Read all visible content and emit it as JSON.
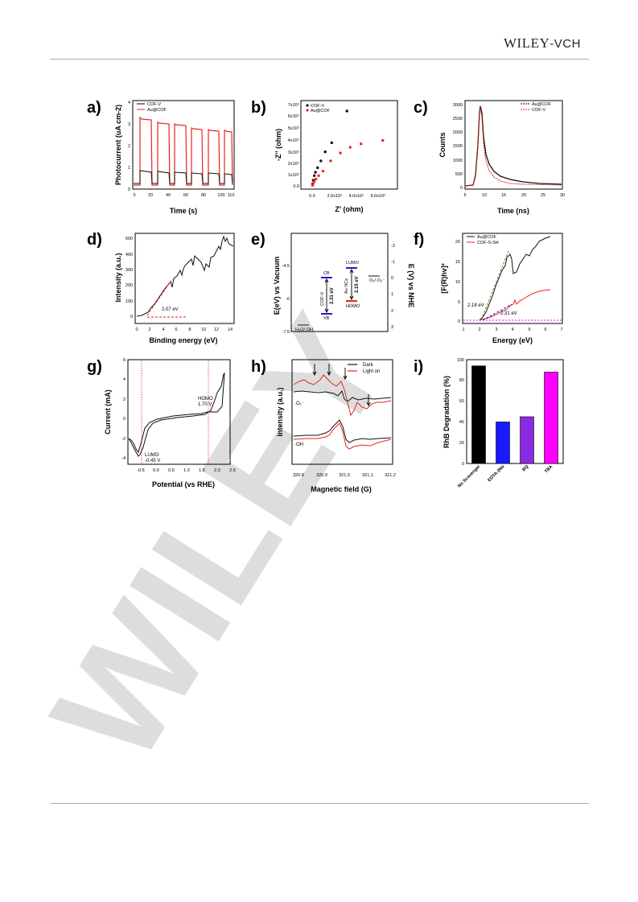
{
  "header": {
    "publisher": "WILEY",
    "publisher_suffix": "-VCH"
  },
  "watermark": "WILEY",
  "colors": {
    "red": "#e8231d",
    "black": "#111111",
    "blue": "#1a1ae6",
    "purple": "#8a2be2",
    "magenta": "#ff00ff"
  },
  "panels": {
    "a": {
      "label": "a)",
      "xlabel": "Time (s)",
      "ylabel": "Photocurrent (uA cm-2)",
      "xticks": [
        "0",
        "20",
        "40",
        "60",
        "80",
        "100",
        "110"
      ],
      "yticks": [
        "0",
        "1",
        "2",
        "3",
        "4"
      ],
      "legend": [
        "COF-V",
        "Au@COF"
      ]
    },
    "b": {
      "label": "b)",
      "xlabel": "Z' (ohm)",
      "ylabel": "-Z'' (ohm)",
      "xticks": [
        "0.0",
        "2.0x10⁵",
        "4.0x10⁵",
        "6.0x10⁵"
      ],
      "yticks": [
        "0.0",
        "1x10⁵",
        "2x10⁵",
        "3x10⁵",
        "4x10⁵",
        "5x10⁵",
        "6x10⁵",
        "7x10⁵"
      ],
      "legend": [
        "COF-V",
        "Au@COF"
      ]
    },
    "c": {
      "label": "c)",
      "xlabel": "Time (ns)",
      "ylabel": "Counts",
      "xticks": [
        "5",
        "10",
        "15",
        "20",
        "25",
        "30"
      ],
      "yticks": [
        "0",
        "500",
        "1000",
        "1500",
        "2000",
        "2500",
        "3000"
      ],
      "legend": [
        "Au@COF",
        "COF-V"
      ]
    },
    "d": {
      "label": "d)",
      "xlabel": "Binding energy (eV)",
      "ylabel": "Intensity (a.u.)",
      "xticks": [
        "0",
        "2",
        "4",
        "6",
        "8",
        "10",
        "12",
        "14"
      ],
      "yticks": [
        "0",
        "100",
        "200",
        "300",
        "400",
        "500"
      ],
      "annotation": "2.07 eV"
    },
    "e": {
      "label": "e)",
      "ylabel_left": "E(eV) vs Vacuum",
      "ylabel_right": "E (V) vs NHE",
      "yticks_left": [
        "-7.5",
        "-6",
        "-4.5"
      ],
      "yticks_right": [
        "-2",
        "-1",
        "0",
        "1",
        "2",
        "3"
      ],
      "cb": "CB",
      "vb": "VB",
      "lumo": "LUMO",
      "homo": "HOMO",
      "cof_label": "COF-V",
      "cof_gap": "2.31 eV",
      "au_label": "Au NCs",
      "au_gap": "2.15 eV",
      "o2_label": "O₂/·O₂⁻",
      "h2o_label": "H₂O/·OH"
    },
    "f": {
      "label": "f)",
      "xlabel": "Energy (eV)",
      "ylabel": "[F(R)hv]²",
      "xticks": [
        "1",
        "2",
        "3",
        "4",
        "5",
        "6",
        "7"
      ],
      "yticks": [
        "0",
        "5",
        "10",
        "15",
        "20"
      ],
      "legend": [
        "Au@COF",
        "COF-S-SH"
      ],
      "ann1": "2.18 eV",
      "ann2": "2.31 eV"
    },
    "g": {
      "label": "g)",
      "xlabel": "Potential (vs RHE)",
      "ylabel": "Current (mA)",
      "xticks": [
        "-0.5",
        "0.0",
        "0.5",
        "1.0",
        "1.5",
        "2.0",
        "2.5"
      ],
      "yticks": [
        "-4",
        "-2",
        "0",
        "2",
        "4",
        "6"
      ],
      "homo": "HOMO",
      "homo_v": "1.70 V",
      "lumo": "LUMO",
      "lumo_v": "-0.45 V"
    },
    "h": {
      "label": "h)",
      "xlabel": "Magnetic field (G)",
      "ylabel": "Intensity (a.u.)",
      "xticks": [
        "320.8",
        "320.9",
        "321.0",
        "321.1",
        "321.2"
      ],
      "legend": [
        "Dark",
        "Light on"
      ],
      "o2": "·O₂⁻",
      "oh": "·OH"
    },
    "i": {
      "label": "i)",
      "ylabel": "RhB Degradation (%)",
      "yticks": [
        "0",
        "20",
        "40",
        "60",
        "80",
        "100"
      ]
    }
  },
  "chart_data": [
    {
      "type": "bar",
      "title": "",
      "categories": [
        "No Scavenger",
        "EDTA-2Na",
        "BQ",
        "TBA"
      ],
      "values": [
        94,
        40,
        45,
        88
      ],
      "colors": [
        "#000000",
        "#1a1aff",
        "#8a2be2",
        "#ff00ff"
      ],
      "xlabel": "",
      "ylabel": "RhB Degradation (%)",
      "ylim": [
        0,
        100
      ]
    },
    {
      "type": "scatter",
      "title": "",
      "xlabel": "Z' (ohm)",
      "ylabel": "-Z'' (ohm)",
      "series": [
        {
          "name": "COF-V",
          "x": [
            5000.0,
            10000.0,
            20000.0,
            30000.0,
            50000.0,
            80000.0,
            120000.0,
            180000.0,
            320000.0
          ],
          "y": [
            20000.0,
            50000.0,
            90000.0,
            120000.0,
            160000.0,
            220000.0,
            300000.0,
            380000.0,
            660000.0
          ]
        },
        {
          "name": "Au@COF",
          "x": [
            3000.0,
            10000.0,
            20000.0,
            35000.0,
            60000.0,
            100000.0,
            170000.0,
            260000.0,
            350000.0,
            450000.0,
            650000.0
          ],
          "y": [
            5000.0,
            20000.0,
            40000.0,
            60000.0,
            90000.0,
            130000.0,
            220000.0,
            290000.0,
            340000.0,
            370000.0,
            400000.0
          ]
        }
      ]
    }
  ]
}
